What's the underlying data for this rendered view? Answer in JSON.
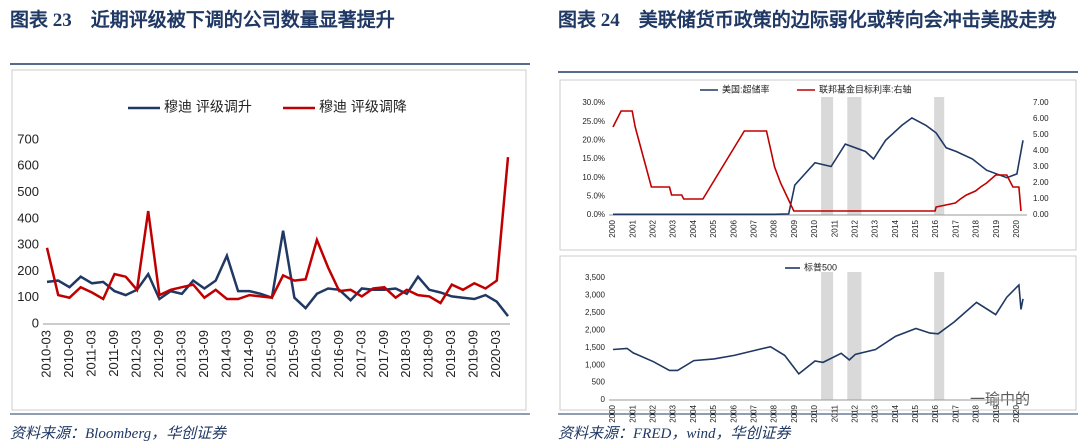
{
  "figures": [
    {
      "title": "图表 23　近期评级被下调的公司数量显著提升",
      "source": "资料来源：Bloomberg，华创证券"
    },
    {
      "title": "图表 24　美联储货币政策的边际弱化或转向会冲击美股走势",
      "source": "资料来源：FRED，wind，华创证券"
    }
  ],
  "watermark": "一瑜中的",
  "chart_data": [
    {
      "type": "line",
      "categories": [
        "2010-03",
        null,
        "2010-09",
        null,
        "2011-03",
        null,
        "2011-09",
        null,
        "2012-03",
        null,
        "2012-09",
        null,
        "2013-03",
        null,
        "2013-09",
        null,
        "2014-03",
        null,
        "2014-09",
        null,
        "2015-03",
        null,
        "2015-09",
        null,
        "2016-03",
        null,
        "2016-09",
        null,
        "2017-03",
        null,
        "2017-09",
        null,
        "2018-03",
        null,
        "2018-09",
        null,
        "2019-03",
        null,
        "2019-09",
        null,
        "2020-03",
        null
      ],
      "series": [
        {
          "name": "穆迪 评级调升",
          "color": "#1f3864",
          "values": [
            160,
            165,
            140,
            180,
            155,
            160,
            125,
            110,
            130,
            190,
            95,
            125,
            115,
            165,
            135,
            165,
            260,
            125,
            125,
            115,
            100,
            355,
            100,
            60,
            115,
            135,
            130,
            90,
            135,
            130,
            130,
            135,
            115,
            180,
            130,
            120,
            105,
            100,
            95,
            110,
            85,
            30
          ]
        },
        {
          "name": "穆迪 评级调降",
          "color": "#c00000",
          "values": [
            290,
            110,
            100,
            140,
            120,
            95,
            190,
            180,
            130,
            430,
            110,
            130,
            140,
            150,
            100,
            130,
            95,
            95,
            110,
            105,
            100,
            185,
            165,
            170,
            320,
            215,
            125,
            130,
            105,
            135,
            140,
            100,
            130,
            110,
            105,
            80,
            150,
            130,
            155,
            135,
            165,
            635
          ]
        }
      ],
      "ylim": [
        0,
        700
      ],
      "yticks": [
        0,
        100,
        200,
        300,
        400,
        500,
        600,
        700
      ],
      "legend": "top"
    },
    {
      "type": "line",
      "xlim": [
        2000,
        2020.4
      ],
      "xticks": [
        2000,
        2001,
        2002,
        2003,
        2004,
        2005,
        2006,
        2007,
        2008,
        2009,
        2010,
        2011,
        2012,
        2013,
        2014,
        2015,
        2016,
        2017,
        2018,
        2019,
        2020
      ],
      "ylim": [
        0,
        30
      ],
      "yticks": [
        {
          "value": 0,
          "label": "0.0%"
        },
        {
          "value": 5,
          "label": "5.0%"
        },
        {
          "value": 10,
          "label": "10.0%"
        },
        {
          "value": 15,
          "label": "15.0%"
        },
        {
          "value": 20,
          "label": "20.0%"
        },
        {
          "value": 25,
          "label": "25.0%"
        },
        {
          "value": 30,
          "label": "30.0%"
        }
      ],
      "y2lim": [
        0,
        7
      ],
      "y2ticks": [
        {
          "value": 0,
          "label": "0.00"
        },
        {
          "value": 1,
          "label": "1.00"
        },
        {
          "value": 2,
          "label": "2.00"
        },
        {
          "value": 3,
          "label": "3.00"
        },
        {
          "value": 4,
          "label": "4.00"
        },
        {
          "value": 5,
          "label": "5.00"
        },
        {
          "value": 6,
          "label": "6.00"
        },
        {
          "value": 7,
          "label": "7.00"
        }
      ],
      "bands": [
        [
          2010.3,
          2010.9
        ],
        [
          2011.6,
          2012.3
        ],
        [
          2015.9,
          2016.4
        ]
      ],
      "series": [
        {
          "name": "美国:超储率",
          "color": "#1f3864",
          "x": [
            2000,
            2002,
            2004,
            2006,
            2008,
            2008.7,
            2009,
            2009.5,
            2010,
            2010.8,
            2011.5,
            2012.5,
            2012.9,
            2013.5,
            2014.3,
            2014.8,
            2015.5,
            2016,
            2016.5,
            2017,
            2017.8,
            2018.5,
            2019.5,
            2020,
            2020.3
          ],
          "values": [
            0.2,
            0.2,
            0.2,
            0.2,
            0.2,
            0.3,
            8,
            11,
            14,
            13,
            19,
            17,
            15,
            20,
            24,
            26,
            24,
            22,
            18,
            17,
            15,
            12,
            10,
            11,
            20
          ]
        },
        {
          "name": "联邦基金目标利率:右轴",
          "color": "#c00000",
          "axis": "y2",
          "x": [
            2000,
            2000.1,
            2000.4,
            2000.95,
            2001.1,
            2001.9,
            2002.8,
            2002.9,
            2003.4,
            2003.5,
            2004.45,
            2006.5,
            2007.6,
            2008.0,
            2008.3,
            2008.95,
            2015.95,
            2016.0,
            2016.95,
            2017.2,
            2017.5,
            2017.95,
            2018.2,
            2018.5,
            2018.95,
            2019.5,
            2019.6,
            2019.8,
            2020.1,
            2020.2
          ],
          "values": [
            5.5,
            5.75,
            6.5,
            6.5,
            5.5,
            1.75,
            1.75,
            1.25,
            1.25,
            1.0,
            1.0,
            5.25,
            5.25,
            3.0,
            2.0,
            0.25,
            0.25,
            0.5,
            0.75,
            1.0,
            1.25,
            1.5,
            1.75,
            2.0,
            2.5,
            2.5,
            2.25,
            1.75,
            1.75,
            0.25
          ]
        }
      ]
    },
    {
      "type": "line",
      "xlim": [
        2000,
        2020.4
      ],
      "xticks": [
        2000,
        2001,
        2002,
        2003,
        2004,
        2005,
        2006,
        2007,
        2008,
        2009,
        2010,
        2011,
        2012,
        2013,
        2014,
        2015,
        2016,
        2017,
        2018,
        2019,
        2020
      ],
      "ylim": [
        0,
        3500
      ],
      "yticks": [
        0,
        {
          "value": 500,
          "label": "500"
        },
        {
          "value": 1000,
          "label": "1,000"
        },
        {
          "value": 1500,
          "label": "1,500"
        },
        {
          "value": 2000,
          "label": "2,000"
        },
        {
          "value": 2500,
          "label": "2,500"
        },
        {
          "value": 3000,
          "label": "3,000"
        },
        {
          "value": 3500,
          "label": "3,500"
        }
      ],
      "bands": [
        [
          2010.3,
          2010.9
        ],
        [
          2011.6,
          2012.3
        ],
        [
          2015.9,
          2016.4
        ]
      ],
      "series": [
        {
          "name": "标普500",
          "color": "#1f3864",
          "x": [
            2000,
            2000.7,
            2001,
            2002,
            2002.8,
            2003.2,
            2004,
            2005,
            2006,
            2007,
            2007.8,
            2008.5,
            2009.2,
            2010,
            2010.4,
            2011.3,
            2011.7,
            2012,
            2013,
            2014,
            2015,
            2015.7,
            2016.1,
            2016.9,
            2018,
            2018.95,
            2019.5,
            2020.1,
            2020.2,
            2020.3
          ],
          "values": [
            1450,
            1480,
            1350,
            1100,
            850,
            850,
            1130,
            1180,
            1280,
            1420,
            1530,
            1280,
            750,
            1120,
            1080,
            1340,
            1150,
            1310,
            1450,
            1830,
            2050,
            1920,
            1900,
            2240,
            2800,
            2450,
            2950,
            3300,
            2600,
            2900
          ]
        }
      ]
    }
  ]
}
